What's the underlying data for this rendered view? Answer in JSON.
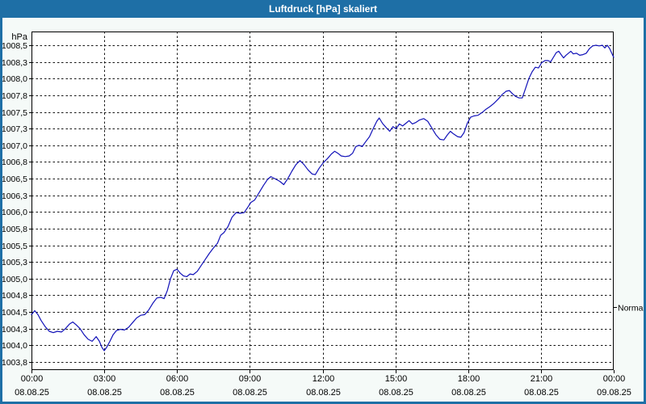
{
  "window": {
    "title": "Luftdruck [hPa] skaliert"
  },
  "colors": {
    "titlebar": "#1e6fa6",
    "window_border": "#1e6fa6",
    "content_bg": "#f5faf8",
    "plot_bg": "#ffffff",
    "grid": "#141414",
    "axis_text": "#000000",
    "line": "#1111b8"
  },
  "chart_data": {
    "type": "line",
    "title": "Luftdruck [hPa] skaliert",
    "xlabel": "",
    "ylabel": "hPa",
    "ylim": [
      1003.75,
      1008.5
    ],
    "x_range_minutes": [
      0,
      1440
    ],
    "grid": "dashed",
    "legend_position": "none",
    "y_ticks": [
      {
        "v": 1008.5,
        "label": "1008,5"
      },
      {
        "v": 1008.25,
        "label": "1008,3"
      },
      {
        "v": 1008.0,
        "label": "1008,0"
      },
      {
        "v": 1007.75,
        "label": "1007,8"
      },
      {
        "v": 1007.5,
        "label": "1007,5"
      },
      {
        "v": 1007.25,
        "label": "1007,3"
      },
      {
        "v": 1007.0,
        "label": "1007,0"
      },
      {
        "v": 1006.75,
        "label": "1006,8"
      },
      {
        "v": 1006.5,
        "label": "1006,5"
      },
      {
        "v": 1006.25,
        "label": "1006,3"
      },
      {
        "v": 1006.0,
        "label": "1006,0"
      },
      {
        "v": 1005.75,
        "label": "1005,8"
      },
      {
        "v": 1005.5,
        "label": "1005,5"
      },
      {
        "v": 1005.25,
        "label": "1005,3"
      },
      {
        "v": 1005.0,
        "label": "1005,0"
      },
      {
        "v": 1004.75,
        "label": "1004,8"
      },
      {
        "v": 1004.5,
        "label": "1004,5"
      },
      {
        "v": 1004.25,
        "label": "1004,3"
      },
      {
        "v": 1004.0,
        "label": "1004,0"
      },
      {
        "v": 1003.75,
        "label": "1003,8"
      }
    ],
    "x_ticks": [
      {
        "t": 0,
        "time": "00:00",
        "date": "08.08.25"
      },
      {
        "t": 180,
        "time": "03:00",
        "date": "08.08.25"
      },
      {
        "t": 360,
        "time": "06:00",
        "date": "08.08.25"
      },
      {
        "t": 540,
        "time": "09:00",
        "date": "08.08.25"
      },
      {
        "t": 720,
        "time": "12:00",
        "date": "08.08.25"
      },
      {
        "t": 900,
        "time": "15:00",
        "date": "08.08.25"
      },
      {
        "t": 1080,
        "time": "18:00",
        "date": "08.08.25"
      },
      {
        "t": 1260,
        "time": "21:00",
        "date": "08.08.25"
      },
      {
        "t": 1440,
        "time": "00:00",
        "date": "09.08.25"
      }
    ],
    "normal_marker": {
      "label": "Normal",
      "value": 1004.57
    },
    "series": [
      {
        "name": "Luftdruck",
        "color": "#1111b8",
        "points": [
          [
            0,
            1004.46
          ],
          [
            8,
            1004.52
          ],
          [
            16,
            1004.46
          ],
          [
            24,
            1004.37
          ],
          [
            34,
            1004.28
          ],
          [
            44,
            1004.21
          ],
          [
            54,
            1004.19
          ],
          [
            64,
            1004.21
          ],
          [
            74,
            1004.2
          ],
          [
            84,
            1004.25
          ],
          [
            94,
            1004.32
          ],
          [
            102,
            1004.35
          ],
          [
            110,
            1004.31
          ],
          [
            120,
            1004.25
          ],
          [
            130,
            1004.16
          ],
          [
            140,
            1004.09
          ],
          [
            150,
            1004.06
          ],
          [
            160,
            1004.13
          ],
          [
            168,
            1004.06
          ],
          [
            174,
            1003.97
          ],
          [
            180,
            1003.92
          ],
          [
            186,
            1003.97
          ],
          [
            194,
            1004.06
          ],
          [
            202,
            1004.16
          ],
          [
            210,
            1004.22
          ],
          [
            220,
            1004.24
          ],
          [
            230,
            1004.23
          ],
          [
            240,
            1004.27
          ],
          [
            250,
            1004.34
          ],
          [
            260,
            1004.41
          ],
          [
            270,
            1004.45
          ],
          [
            280,
            1004.46
          ],
          [
            290,
            1004.53
          ],
          [
            300,
            1004.63
          ],
          [
            310,
            1004.71
          ],
          [
            320,
            1004.72
          ],
          [
            328,
            1004.7
          ],
          [
            336,
            1004.82
          ],
          [
            344,
            1005.0
          ],
          [
            352,
            1005.12
          ],
          [
            360,
            1005.14
          ],
          [
            368,
            1005.08
          ],
          [
            376,
            1005.04
          ],
          [
            384,
            1005.03
          ],
          [
            392,
            1005.07
          ],
          [
            400,
            1005.06
          ],
          [
            410,
            1005.11
          ],
          [
            420,
            1005.2
          ],
          [
            430,
            1005.29
          ],
          [
            440,
            1005.38
          ],
          [
            450,
            1005.46
          ],
          [
            460,
            1005.53
          ],
          [
            468,
            1005.65
          ],
          [
            476,
            1005.69
          ],
          [
            486,
            1005.78
          ],
          [
            496,
            1005.92
          ],
          [
            506,
            1005.99
          ],
          [
            516,
            1005.98
          ],
          [
            526,
            1005.99
          ],
          [
            536,
            1006.08
          ],
          [
            542,
            1006.14
          ],
          [
            552,
            1006.18
          ],
          [
            562,
            1006.28
          ],
          [
            574,
            1006.4
          ],
          [
            584,
            1006.49
          ],
          [
            592,
            1006.53
          ],
          [
            602,
            1006.5
          ],
          [
            614,
            1006.46
          ],
          [
            624,
            1006.41
          ],
          [
            634,
            1006.5
          ],
          [
            644,
            1006.61
          ],
          [
            654,
            1006.71
          ],
          [
            664,
            1006.77
          ],
          [
            674,
            1006.71
          ],
          [
            684,
            1006.63
          ],
          [
            694,
            1006.57
          ],
          [
            702,
            1006.56
          ],
          [
            712,
            1006.66
          ],
          [
            722,
            1006.74
          ],
          [
            732,
            1006.8
          ],
          [
            742,
            1006.87
          ],
          [
            750,
            1006.91
          ],
          [
            758,
            1006.88
          ],
          [
            766,
            1006.84
          ],
          [
            776,
            1006.83
          ],
          [
            786,
            1006.84
          ],
          [
            794,
            1006.88
          ],
          [
            802,
            1006.98
          ],
          [
            810,
            1007.0
          ],
          [
            818,
            1006.98
          ],
          [
            826,
            1007.05
          ],
          [
            836,
            1007.13
          ],
          [
            846,
            1007.26
          ],
          [
            854,
            1007.36
          ],
          [
            860,
            1007.41
          ],
          [
            868,
            1007.33
          ],
          [
            878,
            1007.26
          ],
          [
            886,
            1007.21
          ],
          [
            894,
            1007.28
          ],
          [
            902,
            1007.25
          ],
          [
            910,
            1007.32
          ],
          [
            918,
            1007.29
          ],
          [
            926,
            1007.33
          ],
          [
            934,
            1007.37
          ],
          [
            942,
            1007.32
          ],
          [
            950,
            1007.34
          ],
          [
            960,
            1007.38
          ],
          [
            970,
            1007.4
          ],
          [
            980,
            1007.36
          ],
          [
            990,
            1007.26
          ],
          [
            1000,
            1007.16
          ],
          [
            1010,
            1007.09
          ],
          [
            1020,
            1007.08
          ],
          [
            1028,
            1007.15
          ],
          [
            1036,
            1007.21
          ],
          [
            1044,
            1007.17
          ],
          [
            1054,
            1007.13
          ],
          [
            1062,
            1007.12
          ],
          [
            1070,
            1007.19
          ],
          [
            1078,
            1007.33
          ],
          [
            1086,
            1007.42
          ],
          [
            1094,
            1007.44
          ],
          [
            1104,
            1007.45
          ],
          [
            1114,
            1007.49
          ],
          [
            1124,
            1007.54
          ],
          [
            1134,
            1007.58
          ],
          [
            1144,
            1007.63
          ],
          [
            1154,
            1007.69
          ],
          [
            1164,
            1007.76
          ],
          [
            1174,
            1007.81
          ],
          [
            1182,
            1007.82
          ],
          [
            1190,
            1007.77
          ],
          [
            1198,
            1007.73
          ],
          [
            1206,
            1007.71
          ],
          [
            1214,
            1007.71
          ],
          [
            1222,
            1007.85
          ],
          [
            1230,
            1008.0
          ],
          [
            1238,
            1008.1
          ],
          [
            1246,
            1008.17
          ],
          [
            1254,
            1008.16
          ],
          [
            1262,
            1008.24
          ],
          [
            1270,
            1008.27
          ],
          [
            1278,
            1008.27
          ],
          [
            1284,
            1008.25
          ],
          [
            1292,
            1008.33
          ],
          [
            1298,
            1008.39
          ],
          [
            1304,
            1008.41
          ],
          [
            1310,
            1008.36
          ],
          [
            1316,
            1008.31
          ],
          [
            1322,
            1008.35
          ],
          [
            1328,
            1008.38
          ],
          [
            1334,
            1008.41
          ],
          [
            1340,
            1008.37
          ],
          [
            1348,
            1008.38
          ],
          [
            1356,
            1008.35
          ],
          [
            1364,
            1008.36
          ],
          [
            1372,
            1008.38
          ],
          [
            1380,
            1008.45
          ],
          [
            1388,
            1008.49
          ],
          [
            1396,
            1008.5
          ],
          [
            1404,
            1008.49
          ],
          [
            1412,
            1008.5
          ],
          [
            1418,
            1008.46
          ],
          [
            1424,
            1008.5
          ],
          [
            1430,
            1008.45
          ],
          [
            1436,
            1008.37
          ],
          [
            1440,
            1008.32
          ]
        ]
      }
    ]
  }
}
